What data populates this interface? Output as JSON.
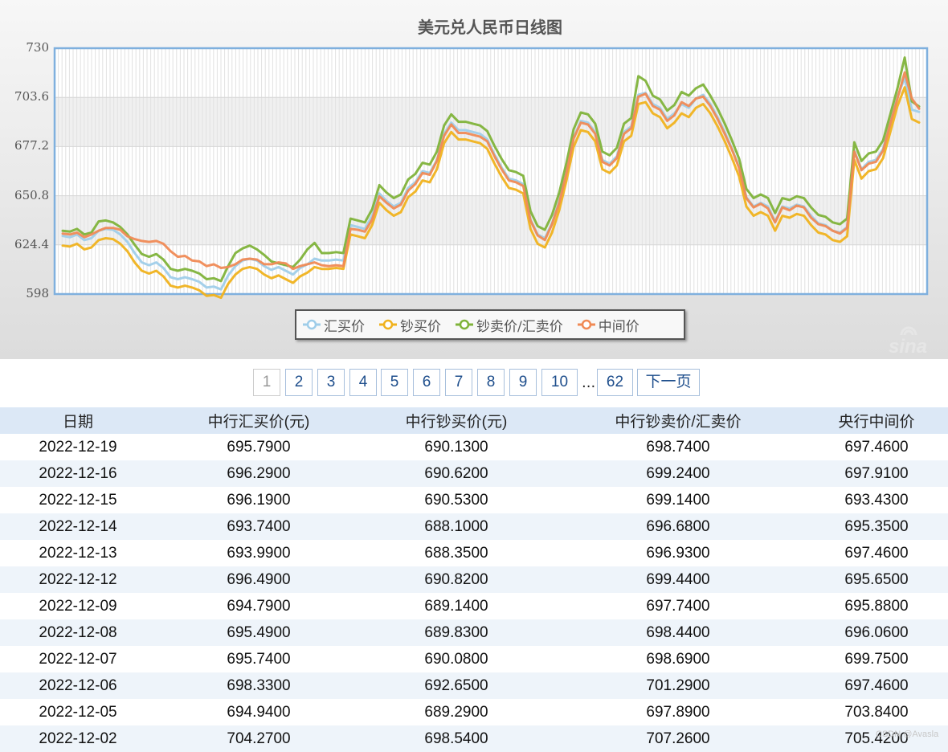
{
  "chart_data": {
    "type": "line",
    "title": "美元兑人民币日线图",
    "ylim": [
      598,
      730
    ],
    "yticks": [
      "730",
      "703.6",
      "677.2",
      "650.8",
      "624.4",
      "598"
    ],
    "grid": true,
    "legend_position": "bottom-center",
    "series": [
      {
        "name": "汇买价",
        "color": "#9fcde9",
        "values": [
          629.2,
          628.5,
          630.0,
          627.0,
          628.0,
          632.0,
          633.0,
          632.5,
          630.0,
          626.0,
          620.0,
          615.0,
          613.5,
          615.0,
          612.0,
          607.0,
          606.0,
          607.0,
          606.0,
          604.5,
          601.5,
          602.0,
          600.5,
          608.0,
          613.0,
          616.0,
          617.0,
          616.0,
          613.0,
          611.0,
          612.5,
          610.5,
          608.5,
          612.0,
          614.0,
          617.0,
          616.0,
          616.0,
          616.5,
          616.0,
          635.0,
          634.0,
          633.0,
          640.0,
          652.0,
          648.0,
          645.0,
          647.0,
          655.0,
          658.0,
          664.0,
          663.0,
          670.0,
          684.0,
          690.0,
          686.0,
          686.0,
          685.0,
          684.0,
          681.0,
          673.0,
          666.0,
          660.0,
          659.0,
          657.0,
          638.0,
          630.0,
          628.0,
          636.0,
          648.0,
          664.0,
          682.0,
          691.0,
          690.0,
          685.0,
          670.0,
          668.0,
          672.0,
          685.0,
          688.0,
          705.0,
          706.0,
          700.0,
          698.0,
          692.0,
          695.0,
          700.0,
          698.0,
          703.0,
          705.0,
          700.0,
          693.0,
          685.0,
          676.0,
          666.0,
          650.0,
          645.0,
          647.0,
          645.0,
          637.0,
          645.0,
          644.0,
          646.0,
          645.0,
          640.0,
          636.0,
          635.0,
          632.0,
          631.0,
          634.0,
          675.0,
          665.0,
          669.0,
          670.0,
          676.0,
          690.0,
          704.0,
          714.0,
          697.0,
          695.8
        ]
      },
      {
        "name": "钞买价",
        "color": "#f0b21e",
        "values": [
          624.0,
          623.5,
          625.0,
          622.0,
          623.0,
          627.0,
          628.0,
          627.5,
          625.0,
          621.0,
          615.0,
          610.5,
          609.0,
          610.5,
          607.5,
          602.5,
          601.5,
          602.5,
          601.5,
          600.0,
          597.0,
          597.5,
          596.0,
          603.5,
          608.5,
          611.5,
          612.5,
          611.5,
          608.5,
          606.5,
          608.0,
          606.0,
          604.0,
          607.5,
          609.5,
          612.5,
          611.5,
          611.5,
          612.0,
          611.5,
          630.0,
          629.0,
          628.0,
          635.0,
          647.0,
          643.0,
          640.0,
          642.0,
          650.0,
          653.0,
          659.0,
          658.0,
          665.0,
          679.0,
          685.0,
          681.0,
          681.0,
          680.0,
          679.0,
          676.0,
          668.0,
          661.0,
          655.0,
          654.0,
          652.0,
          633.0,
          625.0,
          623.0,
          631.0,
          643.0,
          659.0,
          677.0,
          686.0,
          685.0,
          680.0,
          665.0,
          663.0,
          667.0,
          680.0,
          683.0,
          700.0,
          701.0,
          695.0,
          693.0,
          687.0,
          690.0,
          695.0,
          693.0,
          698.0,
          700.0,
          695.0,
          688.0,
          680.0,
          671.0,
          661.0,
          645.0,
          640.0,
          642.0,
          640.0,
          632.0,
          640.0,
          639.0,
          641.0,
          640.0,
          635.0,
          631.0,
          630.0,
          627.0,
          626.0,
          629.0,
          670.0,
          660.0,
          664.0,
          665.0,
          671.0,
          685.0,
          699.0,
          709.0,
          692.0,
          690.1
        ]
      },
      {
        "name": "钞卖价/汇卖价",
        "color": "#7fb33a",
        "values": [
          632.0,
          631.5,
          633.0,
          630.0,
          631.0,
          637.0,
          637.5,
          636.5,
          634.0,
          630.0,
          624.5,
          619.5,
          618.0,
          619.5,
          616.5,
          611.5,
          610.5,
          611.5,
          610.5,
          609.0,
          606.0,
          606.5,
          605.0,
          613.0,
          620.0,
          622.5,
          624.0,
          622.0,
          619.0,
          615.5,
          614.5,
          613.5,
          612.5,
          616.5,
          622.0,
          625.5,
          620.0,
          620.0,
          620.5,
          620.0,
          638.5,
          637.5,
          636.5,
          643.5,
          656.5,
          652.5,
          649.5,
          651.5,
          659.5,
          662.5,
          668.5,
          667.5,
          674.5,
          688.5,
          694.5,
          690.5,
          690.5,
          689.5,
          688.5,
          685.5,
          677.5,
          670.5,
          664.5,
          663.5,
          661.5,
          642.5,
          634.5,
          632.5,
          640.5,
          652.5,
          668.5,
          686.5,
          695.5,
          694.5,
          689.5,
          674.5,
          672.5,
          676.5,
          689.5,
          692.5,
          715.0,
          712.5,
          704.5,
          702.5,
          696.5,
          699.5,
          706.5,
          704.5,
          708.5,
          710.5,
          704.5,
          697.5,
          689.5,
          680.5,
          670.5,
          654.5,
          649.5,
          651.5,
          649.5,
          641.5,
          649.5,
          648.5,
          650.5,
          649.5,
          644.5,
          640.5,
          639.5,
          636.5,
          635.5,
          638.5,
          679.5,
          669.5,
          673.5,
          674.5,
          680.5,
          694.5,
          708.5,
          725.0,
          701.5,
          698.7
        ]
      },
      {
        "name": "中间价",
        "color": "#f08a55",
        "values": [
          630.5,
          630.0,
          631.0,
          628.5,
          630.0,
          632.0,
          633.5,
          633.5,
          632.5,
          629.0,
          627.5,
          626.5,
          626.0,
          626.5,
          625.0,
          621.0,
          618.0,
          618.5,
          616.0,
          615.5,
          613.0,
          614.0,
          612.0,
          612.5,
          614.0,
          616.5,
          617.0,
          616.5,
          614.0,
          614.0,
          615.0,
          614.5,
          611.5,
          613.0,
          614.0,
          615.0,
          613.5,
          613.0,
          613.5,
          613.0,
          633.0,
          632.5,
          631.5,
          638.0,
          650.5,
          647.0,
          644.0,
          646.0,
          653.5,
          657.0,
          663.0,
          662.0,
          669.5,
          683.0,
          689.0,
          684.5,
          684.5,
          683.5,
          682.5,
          680.0,
          672.0,
          665.0,
          659.0,
          658.0,
          656.0,
          637.5,
          629.5,
          627.0,
          635.5,
          647.0,
          663.0,
          681.5,
          690.0,
          689.0,
          684.0,
          669.0,
          667.0,
          671.0,
          684.0,
          687.0,
          704.0,
          705.5,
          699.0,
          697.0,
          691.0,
          694.0,
          701.0,
          699.0,
          703.0,
          704.0,
          699.0,
          692.0,
          684.0,
          675.5,
          665.5,
          649.5,
          644.5,
          646.5,
          644.0,
          636.5,
          644.5,
          643.0,
          645.5,
          644.5,
          639.0,
          635.5,
          634.5,
          632.0,
          630.5,
          633.5,
          674.5,
          664.5,
          668.0,
          669.0,
          675.0,
          689.5,
          703.0,
          717.0,
          703.0,
          697.5
        ]
      }
    ]
  },
  "pagination": {
    "pages": [
      "1",
      "2",
      "3",
      "4",
      "5",
      "6",
      "7",
      "8",
      "9",
      "10"
    ],
    "current": "1",
    "ellipsis": "...",
    "last": "62",
    "next": "下一页"
  },
  "table": {
    "headers": [
      "日期",
      "中行汇买价(元)",
      "中行钞买价(元)",
      "中行钞卖价/汇卖价",
      "央行中间价"
    ],
    "rows": [
      [
        "2022-12-19",
        "695.7900",
        "690.1300",
        "698.7400",
        "697.4600"
      ],
      [
        "2022-12-16",
        "696.2900",
        "690.6200",
        "699.2400",
        "697.9100"
      ],
      [
        "2022-12-15",
        "696.1900",
        "690.5300",
        "699.1400",
        "693.4300"
      ],
      [
        "2022-12-14",
        "693.7400",
        "688.1000",
        "696.6800",
        "695.3500"
      ],
      [
        "2022-12-13",
        "693.9900",
        "688.3500",
        "696.9300",
        "697.4600"
      ],
      [
        "2022-12-12",
        "696.4900",
        "690.8200",
        "699.4400",
        "695.6500"
      ],
      [
        "2022-12-09",
        "694.7900",
        "689.1400",
        "697.7400",
        "695.8800"
      ],
      [
        "2022-12-08",
        "695.4900",
        "689.8300",
        "698.4400",
        "696.0600"
      ],
      [
        "2022-12-07",
        "695.7400",
        "690.0800",
        "698.6900",
        "699.7500"
      ],
      [
        "2022-12-06",
        "698.3300",
        "692.6500",
        "701.2900",
        "697.4600"
      ],
      [
        "2022-12-05",
        "694.9400",
        "689.2900",
        "697.8900",
        "703.8400"
      ],
      [
        "2022-12-02",
        "704.2700",
        "698.5400",
        "707.2600",
        "705.4200"
      ]
    ]
  },
  "logo_text": "sina",
  "watermark": "CSDN @Avasla"
}
